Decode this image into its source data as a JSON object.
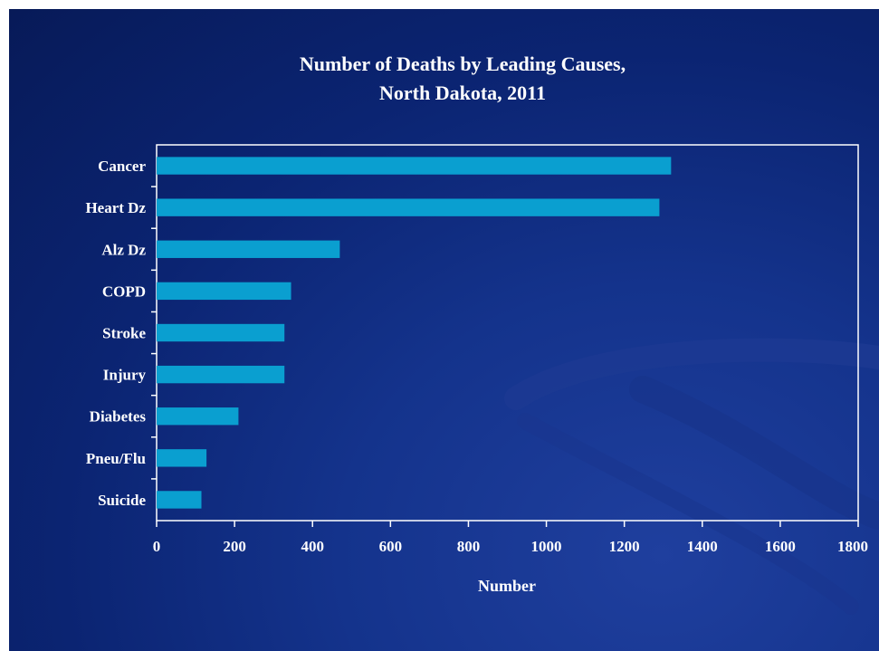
{
  "colors": {
    "background": "#0b2472",
    "bar": "#0a9fd0",
    "frame": "#ffffff",
    "text": "#ffffff"
  },
  "chart_data": {
    "type": "bar",
    "orientation": "horizontal",
    "title_lines": [
      "Number of Deaths by Leading Causes,",
      "North Dakota, 2011"
    ],
    "xlabel": "Number",
    "ylabel": "",
    "categories": [
      "Cancer",
      "Heart Dz",
      "Alz Dz",
      "COPD",
      "Stroke",
      "Injury",
      "Diabetes",
      "Pneu/Flu",
      "Suicide"
    ],
    "values": [
      1320,
      1290,
      470,
      345,
      328,
      328,
      210,
      128,
      115
    ],
    "xlim": [
      0,
      1800
    ],
    "xticks": [
      "0",
      "200",
      "400",
      "600",
      "800",
      "1000",
      "1200",
      "1400",
      "1600",
      "1800"
    ],
    "grid": false,
    "legend": "none"
  }
}
